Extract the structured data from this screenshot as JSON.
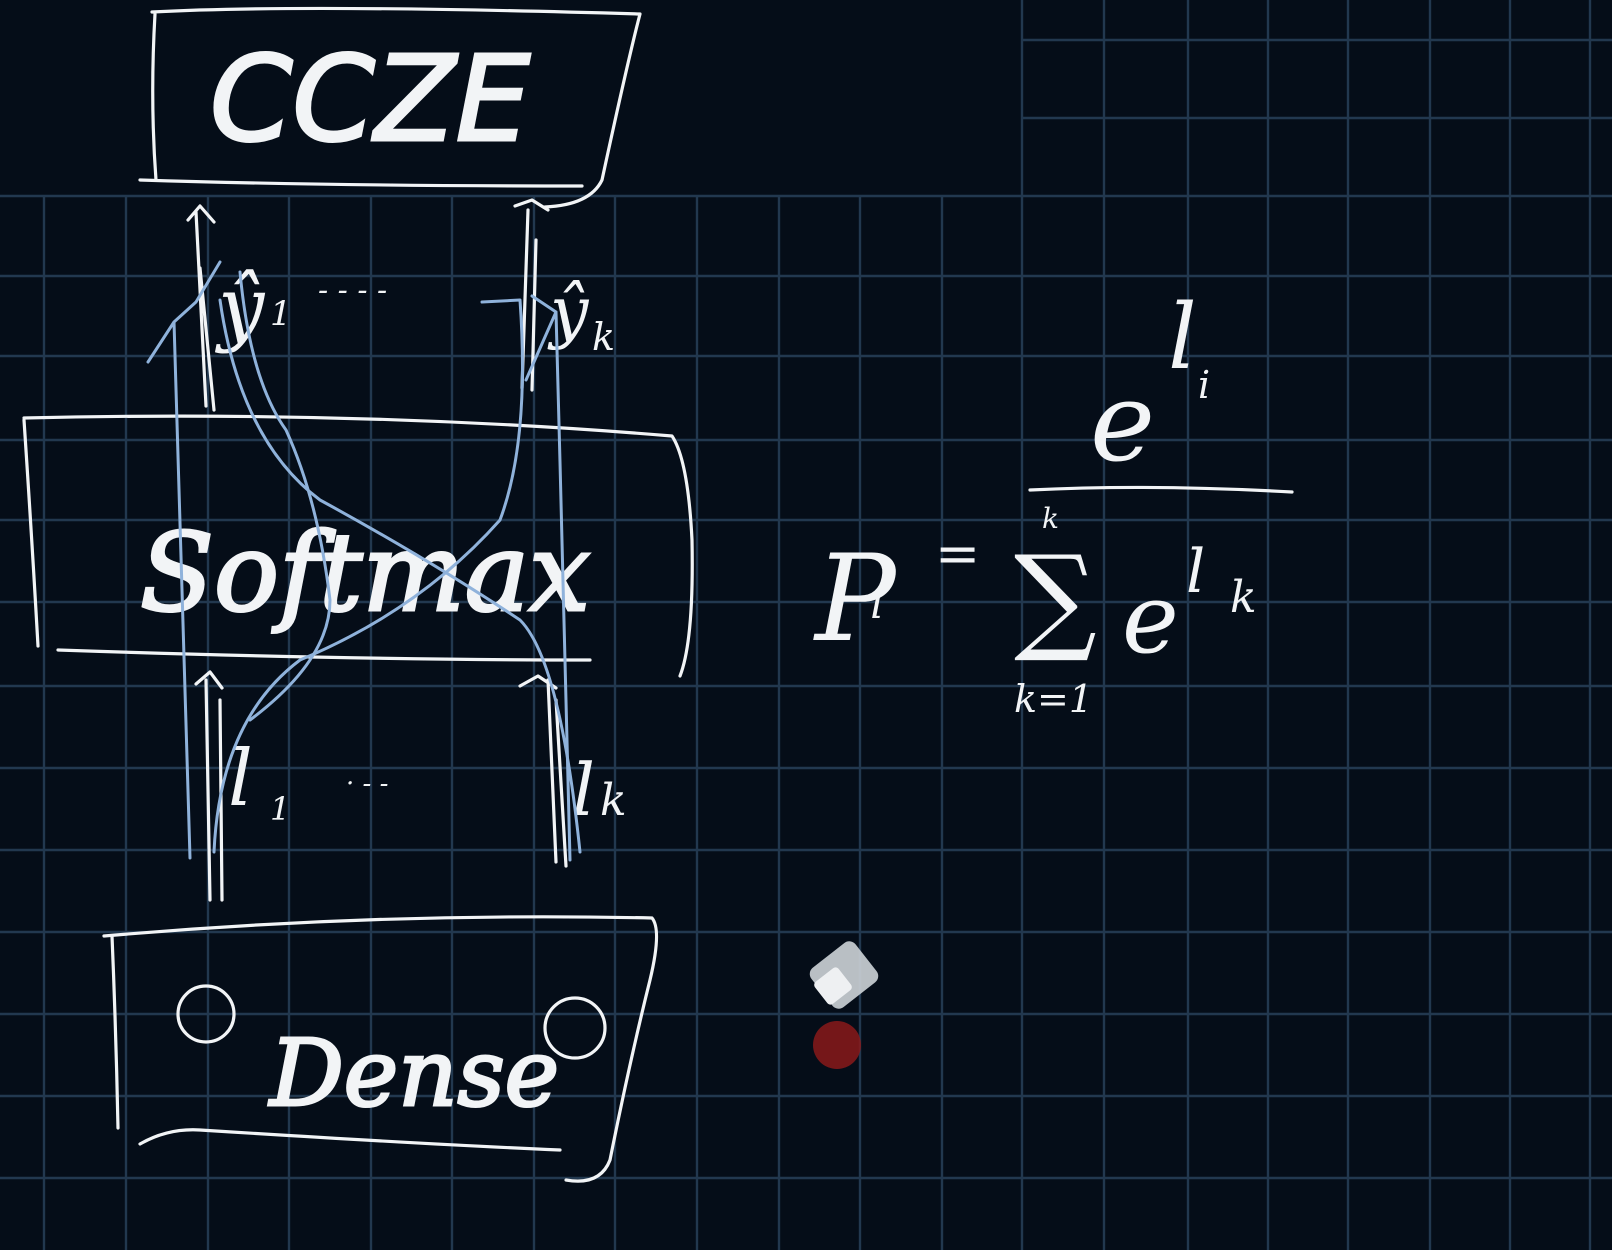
{
  "diagram": {
    "top_box": {
      "label": "CCZE"
    },
    "middle_box": {
      "label": "Softmax"
    },
    "bottom_box": {
      "label": "Dense"
    },
    "outputs": {
      "first": "ŷ",
      "first_sub": "1",
      "dots": "- - - -",
      "last": "ŷ",
      "last_sub": "k"
    },
    "inputs": {
      "first": "l",
      "first_sub": "1",
      "dots": "· - -",
      "last": "l",
      "last_sub": "k"
    }
  },
  "formula": {
    "lhs": "P",
    "lhs_sub": "i",
    "equals": "=",
    "numerator_base": "e",
    "numerator_exp": "l",
    "numerator_exp_sub": "i",
    "sum_symbol": "∑",
    "sum_upper": "k",
    "sum_lower": "k=1",
    "denominator_base": "e",
    "denominator_exp": "l",
    "denominator_exp_sub": "k"
  },
  "colors": {
    "background": "#050d18",
    "grid": "#22384f",
    "ink": "#f2f4f6",
    "highlight_stroke": "#8fb2db",
    "eraser_tool": "#c9ced4",
    "laser_dot": "#8a1a1a"
  },
  "tools": [
    "eraser-icon",
    "laser-pointer-icon"
  ]
}
